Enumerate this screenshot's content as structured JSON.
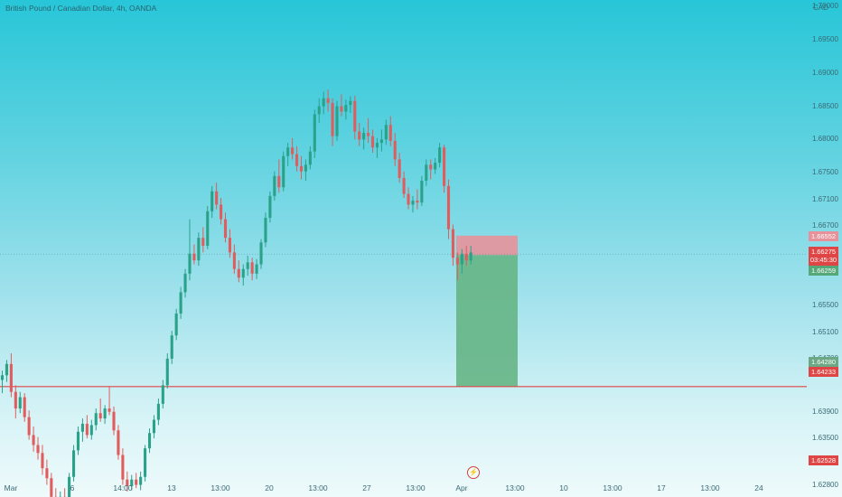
{
  "title": "British Pound / Canadian Dollar, 4h, OANDA",
  "currency": "CAD",
  "colors": {
    "up": "#2aa28a",
    "down": "#e15d5d",
    "level_line": "#e04545",
    "stop_zone": "#e7929a",
    "target_zone": "#66b585",
    "price_line": "#5b8a95"
  },
  "icons": {
    "flash": "lightning-icon"
  },
  "chart_data": {
    "type": "candlestick",
    "y_axis_ticks": [
      "1.70500",
      "1.70000",
      "1.69500",
      "1.69000",
      "1.68500",
      "1.68000",
      "1.67500",
      "1.67100",
      "1.66700",
      "1.65500",
      "1.65100",
      "1.64700",
      "1.63900",
      "1.63500",
      "1.63150",
      "1.62800"
    ],
    "x_axis_ticks": [
      "Mar",
      "6",
      "14:00",
      "13",
      "13:00",
      "20",
      "13:00",
      "27",
      "13:00",
      "Apr",
      "13:00",
      "10",
      "13:00",
      "17",
      "13:00",
      "24"
    ],
    "ylim": [
      1.6225,
      1.7082
    ],
    "badges": {
      "stop": "1.66552",
      "last_price": "1.66275",
      "countdown": "03:45:30",
      "position_price": "1.66259",
      "level_1": "1.64280",
      "level_2": "1.64233",
      "level_3": "1.62528"
    },
    "horizontal_levels": [
      1.6428,
      1.62528
    ],
    "position": {
      "direction": "short",
      "entry": 1.66259,
      "stop": 1.66552,
      "target": 1.6428
    },
    "last_price": 1.66275,
    "ohlc": [
      [
        1.6438,
        1.6452,
        1.6418,
        1.6445
      ],
      [
        1.6445,
        1.6468,
        1.6435,
        1.6462
      ],
      [
        1.6462,
        1.6478,
        1.6412,
        1.642
      ],
      [
        1.642,
        1.643,
        1.638,
        1.6395
      ],
      [
        1.6395,
        1.642,
        1.6388,
        1.6412
      ],
      [
        1.6412,
        1.6418,
        1.6375,
        1.6382
      ],
      [
        1.6382,
        1.6392,
        1.6348,
        1.6355
      ],
      [
        1.6355,
        1.6368,
        1.633,
        1.634
      ],
      [
        1.634,
        1.6352,
        1.6318,
        1.6328
      ],
      [
        1.6328,
        1.634,
        1.6295,
        1.6305
      ],
      [
        1.6305,
        1.6318,
        1.628,
        1.629
      ],
      [
        1.629,
        1.6298,
        1.6252,
        1.6262
      ],
      [
        1.6262,
        1.6275,
        1.6248,
        1.6258
      ],
      [
        1.6258,
        1.627,
        1.625,
        1.6262
      ],
      [
        1.6262,
        1.6275,
        1.6252,
        1.6256
      ],
      [
        1.6256,
        1.6298,
        1.6252,
        1.6292
      ],
      [
        1.6292,
        1.634,
        1.6285,
        1.6332
      ],
      [
        1.6332,
        1.6368,
        1.6325,
        1.636
      ],
      [
        1.636,
        1.638,
        1.6345,
        1.6372
      ],
      [
        1.6372,
        1.6385,
        1.635,
        1.6355
      ],
      [
        1.6355,
        1.6378,
        1.6348,
        1.637
      ],
      [
        1.637,
        1.6395,
        1.6362,
        1.6388
      ],
      [
        1.6388,
        1.641,
        1.6375,
        1.638
      ],
      [
        1.638,
        1.64,
        1.6372,
        1.6395
      ],
      [
        1.6395,
        1.6428,
        1.6385,
        1.639
      ],
      [
        1.639,
        1.6398,
        1.6355,
        1.6362
      ],
      [
        1.6362,
        1.637,
        1.6318,
        1.6325
      ],
      [
        1.6325,
        1.6335,
        1.628,
        1.6288
      ],
      [
        1.6288,
        1.63,
        1.627,
        1.6278
      ],
      [
        1.6278,
        1.6295,
        1.6272,
        1.6288
      ],
      [
        1.6288,
        1.6298,
        1.6275,
        1.628
      ],
      [
        1.628,
        1.63,
        1.6272,
        1.6292
      ],
      [
        1.6292,
        1.634,
        1.6285,
        1.6335
      ],
      [
        1.6335,
        1.6365,
        1.6328,
        1.6358
      ],
      [
        1.6358,
        1.6385,
        1.635,
        1.6378
      ],
      [
        1.6378,
        1.641,
        1.637,
        1.6402
      ],
      [
        1.6402,
        1.6438,
        1.6395,
        1.643
      ],
      [
        1.643,
        1.6478,
        1.6425,
        1.647
      ],
      [
        1.647,
        1.6512,
        1.6462,
        1.6505
      ],
      [
        1.6505,
        1.6545,
        1.6498,
        1.6538
      ],
      [
        1.6538,
        1.6578,
        1.653,
        1.657
      ],
      [
        1.657,
        1.6605,
        1.6562,
        1.6598
      ],
      [
        1.6598,
        1.668,
        1.6588,
        1.6628
      ],
      [
        1.6628,
        1.6642,
        1.6612,
        1.6618
      ],
      [
        1.6618,
        1.666,
        1.661,
        1.6652
      ],
      [
        1.6652,
        1.6668,
        1.663,
        1.664
      ],
      [
        1.664,
        1.67,
        1.6635,
        1.6692
      ],
      [
        1.6692,
        1.673,
        1.6682,
        1.6722
      ],
      [
        1.6722,
        1.6735,
        1.6695,
        1.6702
      ],
      [
        1.6702,
        1.6712,
        1.6672,
        1.668
      ],
      [
        1.668,
        1.669,
        1.6645,
        1.6652
      ],
      [
        1.6652,
        1.6665,
        1.6622,
        1.663
      ],
      [
        1.663,
        1.6642,
        1.6598,
        1.6605
      ],
      [
        1.6605,
        1.6618,
        1.6585,
        1.6592
      ],
      [
        1.6592,
        1.6612,
        1.658,
        1.6605
      ],
      [
        1.6605,
        1.6625,
        1.6595,
        1.6615
      ],
      [
        1.6615,
        1.6622,
        1.6588,
        1.6598
      ],
      [
        1.6598,
        1.662,
        1.659,
        1.6612
      ],
      [
        1.6612,
        1.665,
        1.6605,
        1.6645
      ],
      [
        1.6645,
        1.669,
        1.6638,
        1.6682
      ],
      [
        1.6682,
        1.6722,
        1.6675,
        1.6715
      ],
      [
        1.6715,
        1.6752,
        1.6708,
        1.6745
      ],
      [
        1.6745,
        1.677,
        1.672,
        1.6728
      ],
      [
        1.6728,
        1.6782,
        1.6722,
        1.6775
      ],
      [
        1.6775,
        1.6795,
        1.676,
        1.6788
      ],
      [
        1.6788,
        1.6802,
        1.677,
        1.6778
      ],
      [
        1.6778,
        1.679,
        1.6752,
        1.676
      ],
      [
        1.676,
        1.6775,
        1.674,
        1.6752
      ],
      [
        1.6752,
        1.677,
        1.6738,
        1.6762
      ],
      [
        1.6762,
        1.679,
        1.6755,
        1.6782
      ],
      [
        1.6782,
        1.6845,
        1.6772,
        1.6838
      ],
      [
        1.6838,
        1.6862,
        1.6825,
        1.685
      ],
      [
        1.685,
        1.6872,
        1.6838,
        1.6862
      ],
      [
        1.6862,
        1.6875,
        1.6842,
        1.6855
      ],
      [
        1.6855,
        1.6862,
        1.679,
        1.6805
      ],
      [
        1.6805,
        1.6858,
        1.6798,
        1.685
      ],
      [
        1.685,
        1.6868,
        1.6835,
        1.6842
      ],
      [
        1.6842,
        1.686,
        1.683,
        1.6852
      ],
      [
        1.6852,
        1.6865,
        1.684,
        1.6858
      ],
      [
        1.6858,
        1.6866,
        1.68,
        1.6812
      ],
      [
        1.6812,
        1.6825,
        1.679,
        1.68
      ],
      [
        1.68,
        1.6818,
        1.6785,
        1.681
      ],
      [
        1.681,
        1.6832,
        1.6795,
        1.6805
      ],
      [
        1.6805,
        1.6815,
        1.678,
        1.6788
      ],
      [
        1.6788,
        1.6802,
        1.6772,
        1.6795
      ],
      [
        1.6795,
        1.6815,
        1.6782,
        1.68
      ],
      [
        1.68,
        1.683,
        1.6792,
        1.6822
      ],
      [
        1.6822,
        1.6835,
        1.679,
        1.6798
      ],
      [
        1.6798,
        1.681,
        1.676,
        1.677
      ],
      [
        1.677,
        1.678,
        1.6735,
        1.6742
      ],
      [
        1.6742,
        1.6752,
        1.6712,
        1.6718
      ],
      [
        1.6718,
        1.6728,
        1.6695,
        1.6702
      ],
      [
        1.6702,
        1.6715,
        1.669,
        1.6708
      ],
      [
        1.6708,
        1.6725,
        1.6695,
        1.6705
      ],
      [
        1.6705,
        1.6745,
        1.67,
        1.6738
      ],
      [
        1.6738,
        1.677,
        1.673,
        1.6762
      ],
      [
        1.6762,
        1.677,
        1.674,
        1.6755
      ],
      [
        1.6755,
        1.6772,
        1.6748,
        1.6765
      ],
      [
        1.6765,
        1.6795,
        1.6758,
        1.6788
      ],
      [
        1.6788,
        1.6792,
        1.672,
        1.673
      ],
      [
        1.673,
        1.674,
        1.665,
        1.6665
      ],
      [
        1.6665,
        1.6672,
        1.661,
        1.6622
      ],
      [
        1.6622,
        1.663,
        1.6588,
        1.6612
      ],
      [
        1.6612,
        1.6635,
        1.6598,
        1.6628
      ],
      [
        1.6628,
        1.664,
        1.661,
        1.6618
      ],
      [
        1.6618,
        1.664,
        1.6612,
        1.663
      ]
    ]
  }
}
